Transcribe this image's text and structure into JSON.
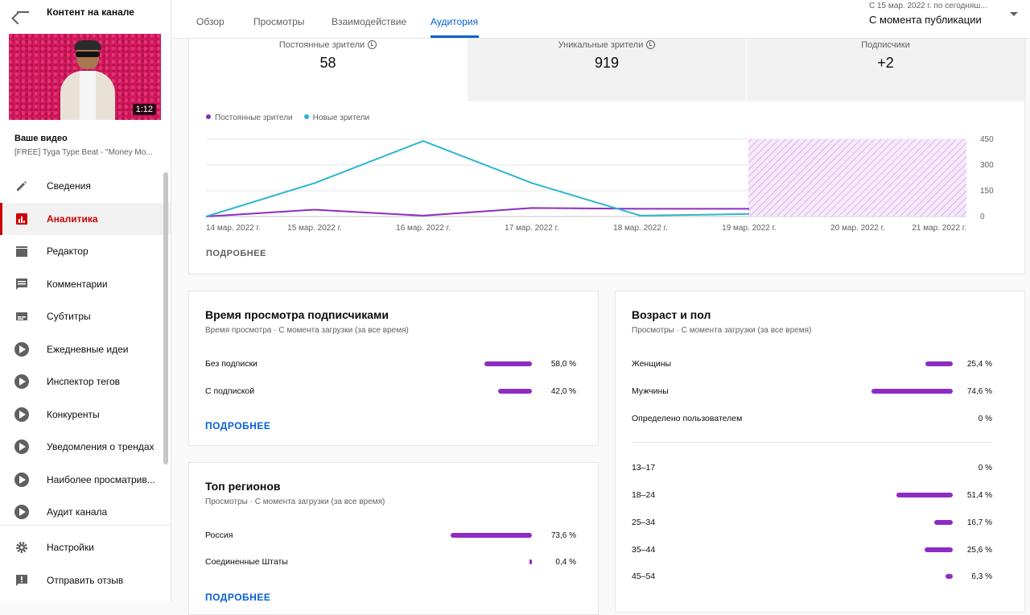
{
  "sidebar": {
    "title": "Контент на канале",
    "thumbnail_duration": "1:12",
    "video_label": "Ваше видео",
    "video_title": "[FREE] Tyga Type Beat - \"Money Mo...",
    "items": [
      {
        "label": "Сведения",
        "icon": "pencil-icon"
      },
      {
        "label": "Аналитика",
        "icon": "analytics-icon",
        "active": true
      },
      {
        "label": "Редактор",
        "icon": "clapper-icon"
      },
      {
        "label": "Комментарии",
        "icon": "comment-icon"
      },
      {
        "label": "Субтитры",
        "icon": "subtitles-icon"
      },
      {
        "label": "Ежедневные идеи",
        "icon": "extension-icon"
      },
      {
        "label": "Инспектор тегов",
        "icon": "extension-icon"
      },
      {
        "label": "Конкуренты",
        "icon": "extension-icon"
      },
      {
        "label": "Уведомления о трендах",
        "icon": "extension-icon"
      },
      {
        "label": "Наиболее просматрив...",
        "icon": "extension-icon"
      },
      {
        "label": "Аудит канала",
        "icon": "extension-icon"
      }
    ],
    "bottom_items": [
      {
        "label": "Настройки",
        "icon": "gear-icon"
      },
      {
        "label": "Отправить отзыв",
        "icon": "feedback-icon"
      }
    ]
  },
  "header": {
    "tabs": [
      "Обзор",
      "Просмотры",
      "Взаимодействие",
      "Аудитория"
    ],
    "active_tab": "Аудитория",
    "date_range": "С 15 мар. 2022 г. по сегодняш...",
    "date_select": "С момента публикации"
  },
  "stats": [
    {
      "label": "Постоянные зрители",
      "value": "58",
      "has_info": true
    },
    {
      "label": "Уникальные зрители",
      "value": "919",
      "has_info": true
    },
    {
      "label": "Подписчики",
      "value": "+2",
      "has_info": false
    }
  ],
  "chart_data": {
    "type": "line",
    "x": [
      "14 мар. 2022 г.",
      "15 мар. 2022 г.",
      "16 мар. 2022 г.",
      "17 мар. 2022 г.",
      "18 мар. 2022 г.",
      "19 мар. 2022 г.",
      "20 мар. 2022 г.",
      "21 мар. 2022 г."
    ],
    "series": [
      {
        "name": "Постоянные зрители",
        "color": "#8e2bc4",
        "values": [
          0,
          40,
          5,
          50,
          45,
          45,
          null,
          null
        ]
      },
      {
        "name": "Новые зрители",
        "color": "#2eb5d0",
        "values": [
          0,
          195,
          440,
          195,
          5,
          15,
          null,
          null
        ]
      }
    ],
    "y_ticks": [
      "450",
      "300",
      "150",
      "0"
    ],
    "ylim": [
      0,
      450
    ],
    "grid": true,
    "legend_position": "top-left"
  },
  "chart_more": "ПОДРОБНЕЕ",
  "subscribers_card": {
    "title": "Время просмотра подписчиками",
    "subtitle": "Время просмотра · С момента загрузки (за все время)",
    "rows": [
      {
        "label": "Без подписки",
        "value": 58.0,
        "pct": "58,0 %"
      },
      {
        "label": "С подпиской",
        "value": 42.0,
        "pct": "42,0 %"
      }
    ],
    "more": "ПОДРОБНЕЕ"
  },
  "regions_card": {
    "title": "Топ регионов",
    "subtitle": "Просмотры · С момента загрузки (за все время)",
    "rows": [
      {
        "label": "Россия",
        "value": 73.6,
        "pct": "73,6 %"
      },
      {
        "label": "Соединенные Штаты",
        "value": 0.4,
        "pct": "0,4 %"
      }
    ],
    "more": "ПОДРОБНЕЕ"
  },
  "age_card": {
    "title": "Возраст и пол",
    "subtitle": "Просмотры · С момента загрузки (за все время)",
    "gender_rows": [
      {
        "label": "Женщины",
        "value": 25.4,
        "pct": "25,4 %"
      },
      {
        "label": "Мужчины",
        "value": 74.6,
        "pct": "74,6 %"
      },
      {
        "label": "Определено пользователем",
        "value": 0,
        "pct": "0 %"
      }
    ],
    "age_rows": [
      {
        "label": "13–17",
        "value": 0,
        "pct": "0 %"
      },
      {
        "label": "18–24",
        "value": 51.4,
        "pct": "51,4 %"
      },
      {
        "label": "25–34",
        "value": 16.7,
        "pct": "16,7 %"
      },
      {
        "label": "35–44",
        "value": 25.6,
        "pct": "25,6 %"
      },
      {
        "label": "45–54",
        "value": 6.3,
        "pct": "6,3 %"
      }
    ]
  }
}
